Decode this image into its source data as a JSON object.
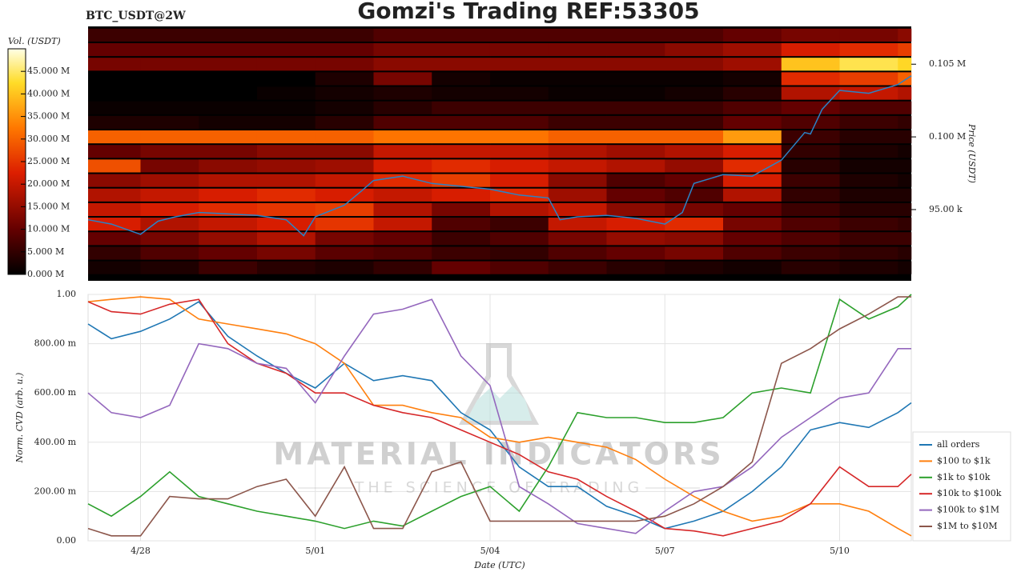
{
  "chart_data": [
    {
      "type": "heatmap",
      "title": "Gomzi's Trading REF:53305",
      "subtitle": "BTC_USDT@2W",
      "colorbar_label": "Vol. (USDT)",
      "zlim": [
        0,
        50
      ],
      "zticks": [
        {
          "value": 0,
          "label": "0.000 M"
        },
        {
          "value": 5,
          "label": "5.000 M"
        },
        {
          "value": 10,
          "label": "10.000 M"
        },
        {
          "value": 15,
          "label": "15.000 M"
        },
        {
          "value": 20,
          "label": "20.000 M"
        },
        {
          "value": 25,
          "label": "25.000 M"
        },
        {
          "value": 30,
          "label": "30.000 M"
        },
        {
          "value": 35,
          "label": "35.000 M"
        },
        {
          "value": 40,
          "label": "40.000 M"
        },
        {
          "value": 45,
          "label": "45.000 M"
        }
      ],
      "ylabel": "Price (USDT)",
      "ylim": [
        90100,
        107600
      ],
      "yticks": [
        {
          "value": 95000,
          "label": "95.00 k"
        },
        {
          "value": 100000,
          "label": "0.100 M"
        },
        {
          "value": 105000,
          "label": "0.105 M"
        }
      ],
      "xlim": [
        -0.9,
        13.23
      ],
      "x_edges": [
        -0.9,
        0,
        1,
        2,
        3,
        4,
        5,
        6,
        7,
        8,
        9,
        10,
        11,
        12,
        13,
        13.23
      ],
      "y_edges": [
        90500,
        91500,
        92500,
        93500,
        94500,
        95500,
        96500,
        97500,
        98500,
        99500,
        100500,
        101500,
        102500,
        103500,
        104500,
        105500,
        106500,
        107500
      ],
      "z": [
        [
          2,
          3,
          6,
          4,
          3,
          5,
          10,
          8,
          6,
          4,
          3,
          2,
          4,
          3,
          2
        ],
        [
          5,
          8,
          10,
          12,
          9,
          8,
          6,
          5,
          8,
          10,
          12,
          8,
          6,
          5,
          4
        ],
        [
          10,
          12,
          15,
          18,
          12,
          10,
          6,
          8,
          12,
          15,
          14,
          10,
          8,
          6,
          6
        ],
        [
          22,
          18,
          20,
          22,
          25,
          20,
          8,
          6,
          20,
          22,
          24,
          12,
          8,
          6,
          5
        ],
        [
          20,
          22,
          24,
          25,
          26,
          18,
          12,
          18,
          20,
          14,
          12,
          10,
          6,
          4,
          4
        ],
        [
          18,
          20,
          22,
          24,
          22,
          20,
          22,
          24,
          16,
          10,
          8,
          18,
          5,
          3,
          3
        ],
        [
          14,
          16,
          18,
          18,
          20,
          24,
          26,
          22,
          14,
          8,
          10,
          22,
          6,
          3,
          2
        ],
        [
          28,
          12,
          14,
          15,
          16,
          22,
          24,
          22,
          20,
          18,
          15,
          24,
          4,
          2,
          2
        ],
        [
          10,
          12,
          12,
          14,
          14,
          20,
          20,
          20,
          18,
          16,
          18,
          22,
          5,
          3,
          2
        ],
        [
          30,
          30,
          30,
          30,
          30,
          32,
          32,
          32,
          30,
          30,
          30,
          36,
          6,
          4,
          4
        ],
        [
          3,
          3,
          2,
          2,
          4,
          8,
          8,
          8,
          6,
          6,
          6,
          10,
          8,
          6,
          5
        ],
        [
          1,
          1,
          1,
          1,
          2,
          4,
          6,
          6,
          6,
          6,
          6,
          8,
          10,
          8,
          8
        ],
        [
          0,
          0,
          0,
          1,
          2,
          3,
          2,
          2,
          1,
          1,
          2,
          4,
          18,
          20,
          18
        ],
        [
          0,
          0,
          0,
          0,
          3,
          12,
          2,
          1,
          1,
          1,
          1,
          2,
          24,
          26,
          30
        ],
        [
          12,
          12,
          12,
          12,
          12,
          14,
          14,
          14,
          14,
          14,
          14,
          16,
          40,
          44,
          42
        ],
        [
          10,
          10,
          10,
          10,
          10,
          12,
          12,
          12,
          12,
          12,
          14,
          16,
          22,
          24,
          26
        ],
        [
          6,
          6,
          6,
          6,
          6,
          8,
          8,
          8,
          8,
          8,
          8,
          10,
          12,
          12,
          14
        ]
      ],
      "line": {
        "color": "#2b83c6",
        "x": [
          -0.9,
          -0.5,
          0,
          0.3,
          0.6,
          1,
          1.5,
          2,
          2.5,
          2.8,
          3,
          3.5,
          3.8,
          4,
          4.5,
          5,
          5.5,
          6,
          6.5,
          7,
          7.2,
          7.5,
          8,
          8.5,
          9,
          9.3,
          9.5,
          10,
          10.5,
          11,
          11.4,
          11.5,
          11.7,
          12,
          12.5,
          13,
          13.23
        ],
        "values": [
          94300,
          94000,
          93300,
          94200,
          94500,
          94800,
          94700,
          94600,
          94300,
          93200,
          94500,
          95300,
          96300,
          97000,
          97300,
          96800,
          96600,
          96400,
          96000,
          95800,
          94300,
          94500,
          94600,
          94400,
          94000,
          94800,
          96800,
          97400,
          97300,
          98400,
          100300,
          100200,
          101900,
          103200,
          103000,
          103600,
          104200
        ]
      }
    },
    {
      "type": "line",
      "xlabel": "Date (UTC)",
      "ylabel": "Norm. CVD (arb. u.)",
      "grid": true,
      "legend": "right",
      "xlim": [
        -0.9,
        13.23
      ],
      "xticks": [
        {
          "value": 0,
          "label": "4/28"
        },
        {
          "value": 3,
          "label": "5/01"
        },
        {
          "value": 6,
          "label": "5/04"
        },
        {
          "value": 9,
          "label": "5/07"
        },
        {
          "value": 12,
          "label": "5/10"
        }
      ],
      "ylim": [
        0,
        1
      ],
      "yticks": [
        {
          "value": 0,
          "label": "0.00"
        },
        {
          "value": 0.2,
          "label": "200.00 m"
        },
        {
          "value": 0.4,
          "label": "400.00 m"
        },
        {
          "value": 0.6,
          "label": "600.00 m"
        },
        {
          "value": 0.8,
          "label": "800.00 m"
        },
        {
          "value": 1,
          "label": "1.00"
        }
      ],
      "x": [
        -0.9,
        -0.5,
        0,
        0.5,
        1,
        1.5,
        2,
        2.5,
        3,
        3.5,
        4,
        4.5,
        5,
        5.5,
        6,
        6.5,
        7,
        7.5,
        8,
        8.5,
        9,
        9.5,
        10,
        10.5,
        11,
        11.5,
        12,
        12.5,
        13,
        13.23
      ],
      "series": [
        {
          "name": "all orders",
          "color": "#1f77b4",
          "values": [
            0.88,
            0.82,
            0.85,
            0.9,
            0.97,
            0.83,
            0.75,
            0.68,
            0.62,
            0.72,
            0.65,
            0.67,
            0.65,
            0.52,
            0.45,
            0.3,
            0.22,
            0.22,
            0.14,
            0.1,
            0.05,
            0.08,
            0.12,
            0.2,
            0.3,
            0.45,
            0.48,
            0.46,
            0.52,
            0.56
          ]
        },
        {
          "name": "$100 to $1k",
          "color": "#ff7f0e",
          "values": [
            0.97,
            0.98,
            0.99,
            0.98,
            0.9,
            0.88,
            0.86,
            0.84,
            0.8,
            0.72,
            0.55,
            0.55,
            0.52,
            0.5,
            0.42,
            0.4,
            0.42,
            0.4,
            0.38,
            0.33,
            0.25,
            0.18,
            0.12,
            0.08,
            0.1,
            0.15,
            0.15,
            0.12,
            0.05,
            0.02
          ]
        },
        {
          "name": "$1k to $10k",
          "color": "#2ca02c",
          "values": [
            0.15,
            0.1,
            0.18,
            0.28,
            0.18,
            0.15,
            0.12,
            0.1,
            0.08,
            0.05,
            0.08,
            0.06,
            0.12,
            0.18,
            0.22,
            0.12,
            0.3,
            0.52,
            0.5,
            0.5,
            0.48,
            0.48,
            0.5,
            0.6,
            0.62,
            0.6,
            0.98,
            0.9,
            0.95,
            1.0
          ]
        },
        {
          "name": "$10k to $100k",
          "color": "#d62728",
          "values": [
            0.97,
            0.93,
            0.92,
            0.96,
            0.98,
            0.8,
            0.72,
            0.68,
            0.6,
            0.6,
            0.55,
            0.52,
            0.5,
            0.45,
            0.4,
            0.35,
            0.28,
            0.25,
            0.18,
            0.12,
            0.05,
            0.04,
            0.02,
            0.05,
            0.08,
            0.15,
            0.3,
            0.22,
            0.22,
            0.27
          ]
        },
        {
          "name": "$100k to $1M",
          "color": "#9467bd",
          "values": [
            0.6,
            0.52,
            0.5,
            0.55,
            0.8,
            0.78,
            0.72,
            0.7,
            0.56,
            0.75,
            0.92,
            0.94,
            0.98,
            0.75,
            0.63,
            0.22,
            0.15,
            0.07,
            0.05,
            0.03,
            0.12,
            0.2,
            0.22,
            0.3,
            0.42,
            0.5,
            0.58,
            0.6,
            0.78,
            0.78
          ]
        },
        {
          "name": "$1M to $10M",
          "color": "#8c564b",
          "values": [
            0.05,
            0.02,
            0.02,
            0.18,
            0.17,
            0.17,
            0.22,
            0.25,
            0.1,
            0.3,
            0.05,
            0.05,
            0.28,
            0.32,
            0.08,
            0.08,
            0.08,
            0.08,
            0.08,
            0.08,
            0.1,
            0.15,
            0.22,
            0.32,
            0.72,
            0.78,
            0.86,
            0.92,
            0.99,
            0.99
          ]
        }
      ]
    }
  ],
  "watermark": {
    "title": "MATERIAL INDICATORS",
    "subtitle": "THE SCIENCE OF TRADING"
  }
}
